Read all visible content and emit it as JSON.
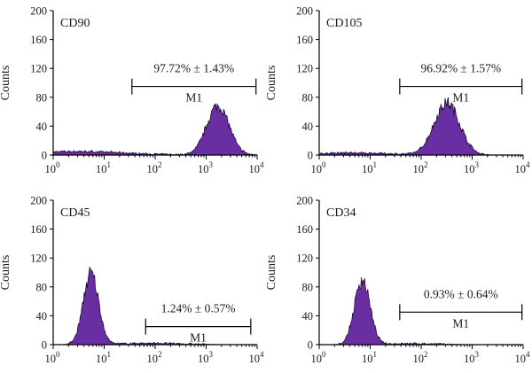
{
  "chart_data": [
    {
      "type": "area",
      "title": "CD90",
      "xlabel": "",
      "ylabel": "Counts",
      "xscale": "log",
      "xlim": [
        1,
        10000
      ],
      "ylim": [
        0,
        200
      ],
      "yticks": [
        "0",
        "40",
        "80",
        "120",
        "160",
        "200"
      ],
      "xticks": [
        {
          "base": "10",
          "exp": "0"
        },
        {
          "base": "10",
          "exp": "1"
        },
        {
          "base": "10",
          "exp": "2"
        },
        {
          "base": "10",
          "exp": "3"
        },
        {
          "base": "10",
          "exp": "4"
        }
      ],
      "color": "#6a2ea3",
      "gate": {
        "name": "M1",
        "start": 35,
        "end": 9500,
        "y": 95,
        "label": "97.72% ± 1.43%"
      },
      "peaks": [
        {
          "center": 1700,
          "log_sd": 0.22,
          "height": 68
        },
        {
          "center": 3,
          "log_sd": 0.9,
          "height": 5
        }
      ]
    },
    {
      "type": "area",
      "title": "CD105",
      "xlabel": "",
      "ylabel": "Counts",
      "xscale": "log",
      "xlim": [
        1,
        10000
      ],
      "ylim": [
        0,
        200
      ],
      "yticks": [
        "0",
        "40",
        "80",
        "120",
        "160",
        "200"
      ],
      "xticks": [
        {
          "base": "10",
          "exp": "0"
        },
        {
          "base": "10",
          "exp": "1"
        },
        {
          "base": "10",
          "exp": "2"
        },
        {
          "base": "10",
          "exp": "3"
        },
        {
          "base": "10",
          "exp": "4"
        }
      ],
      "color": "#6a2ea3",
      "gate": {
        "name": "M1",
        "start": 38,
        "end": 9500,
        "y": 95,
        "label": "96.92% ± 1.57%"
      },
      "peaks": [
        {
          "center": 320,
          "log_sd": 0.25,
          "height": 72
        },
        {
          "center": 4,
          "log_sd": 0.8,
          "height": 3
        }
      ]
    },
    {
      "type": "area",
      "title": "CD45",
      "xlabel": "",
      "ylabel": "Counts",
      "xscale": "log",
      "xlim": [
        1,
        10000
      ],
      "ylim": [
        0,
        200
      ],
      "yticks": [
        "0",
        "40",
        "80",
        "120",
        "160",
        "200"
      ],
      "xticks": [
        {
          "base": "10",
          "exp": "0"
        },
        {
          "base": "10",
          "exp": "1"
        },
        {
          "base": "10",
          "exp": "2"
        },
        {
          "base": "10",
          "exp": "3"
        },
        {
          "base": "10",
          "exp": "4"
        }
      ],
      "color": "#6a2ea3",
      "gate": {
        "name": "M1",
        "start": 65,
        "end": 7500,
        "y": 25,
        "label": "1.24% ± 0.57%"
      },
      "peaks": [
        {
          "center": 5.5,
          "log_sd": 0.15,
          "height": 98
        },
        {
          "center": 80,
          "log_sd": 0.6,
          "height": 2
        }
      ]
    },
    {
      "type": "area",
      "title": "CD34",
      "xlabel": "",
      "ylabel": "Counts",
      "xscale": "log",
      "xlim": [
        1,
        10000
      ],
      "ylim": [
        0,
        200
      ],
      "yticks": [
        "0",
        "40",
        "80",
        "120",
        "160",
        "200"
      ],
      "xticks": [
        {
          "base": "10",
          "exp": "0"
        },
        {
          "base": "10",
          "exp": "1"
        },
        {
          "base": "10",
          "exp": "2"
        },
        {
          "base": "10",
          "exp": "3"
        },
        {
          "base": "10",
          "exp": "4"
        }
      ],
      "color": "#6a2ea3",
      "gate": {
        "name": "M1",
        "start": 38,
        "end": 9500,
        "y": 45,
        "label": "0.93% ± 0.64%"
      },
      "peaks": [
        {
          "center": 7,
          "log_sd": 0.15,
          "height": 90
        },
        {
          "center": 60,
          "log_sd": 0.5,
          "height": 1.5
        }
      ]
    }
  ]
}
